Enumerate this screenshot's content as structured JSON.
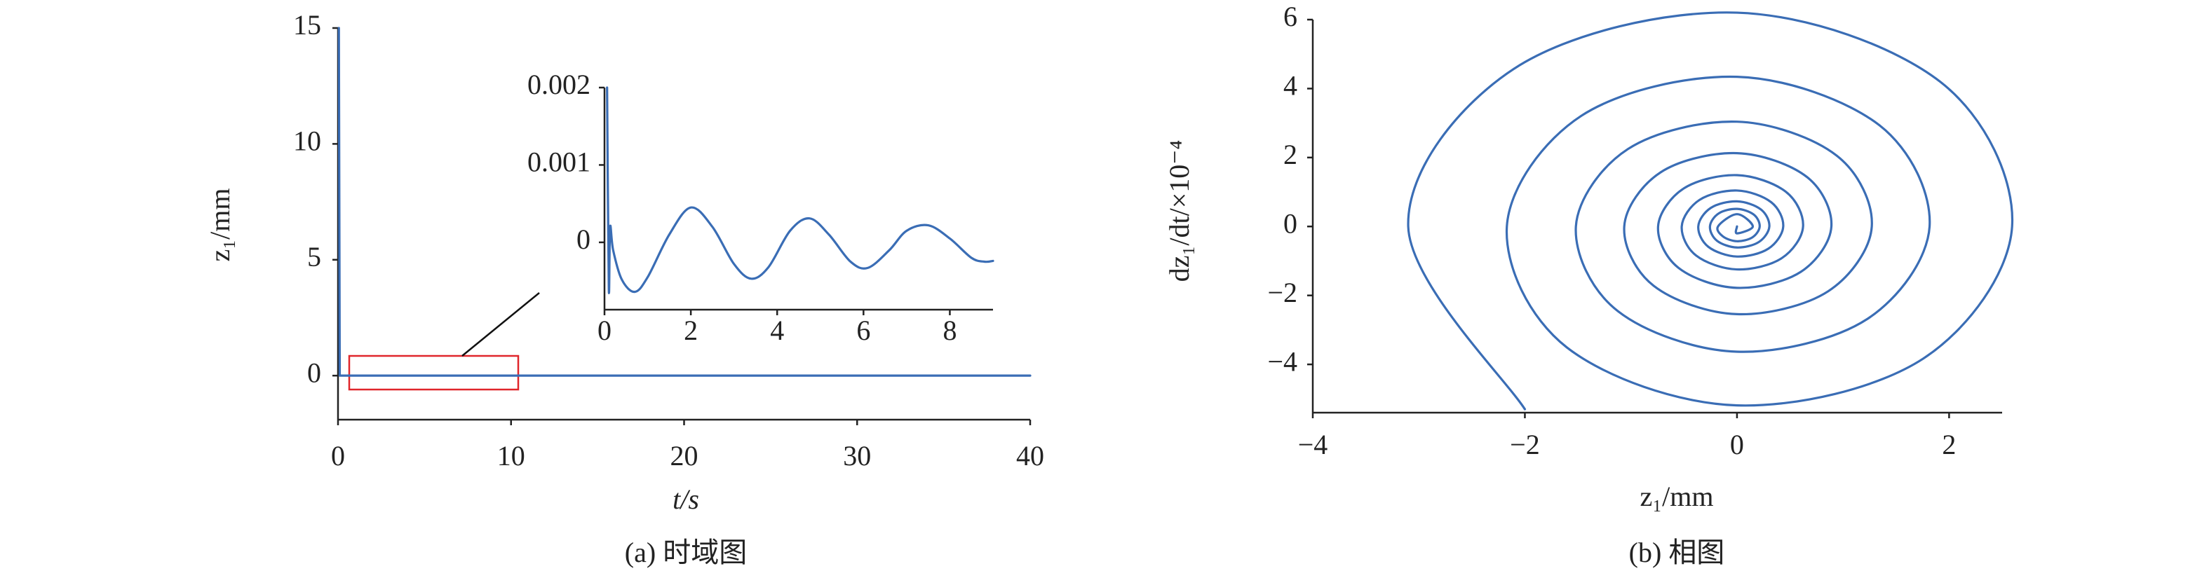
{
  "chart_data": [
    {
      "type": "line",
      "x_label": "t/s",
      "y_label": "z₁/mm",
      "caption": "(a) 时域图",
      "x": [
        0.05,
        0.1,
        0.15,
        40
      ],
      "values": [
        15,
        0.002,
        0,
        0
      ],
      "color": "#3a6db5",
      "xlim": [
        0,
        40
      ],
      "ylim": [
        -1.9,
        15
      ],
      "xticks": [
        0,
        10,
        20,
        30,
        40
      ],
      "yticks": [
        0,
        5,
        10,
        15
      ]
    },
    {
      "type": "line",
      "x": [
        0.06,
        0.1,
        0.13,
        0.2,
        0.4,
        0.7,
        1.0,
        1.5,
        2.0,
        2.5,
        3.0,
        3.4,
        3.8,
        4.3,
        4.75,
        5.2,
        5.7,
        6.1,
        6.6,
        7.0,
        7.5,
        8.0,
        8.5,
        8.8,
        9.0
      ],
      "values": [
        0.002,
        -0.0006,
        0.0002,
        -0.0001,
        -0.00048,
        -0.00064,
        -0.00045,
        0.0001,
        0.00045,
        0.0002,
        -0.00028,
        -0.00047,
        -0.00032,
        0.00015,
        0.00031,
        0.0001,
        -0.00025,
        -0.00033,
        -0.0001,
        0.00015,
        0.00022,
        5e-05,
        -0.0002,
        -0.00025,
        -0.00024
      ],
      "color": "#3a6db5",
      "xlim": [
        0,
        9
      ],
      "ylim": [
        -0.00087,
        0.002
      ],
      "xticks": [
        0,
        2,
        4,
        6,
        8
      ],
      "yticks": [
        0,
        0.001,
        0.002
      ]
    },
    {
      "type": "line",
      "x_label": "z₁/mm",
      "y_label": "dz₁/dt/×10⁻⁴",
      "caption": "(b) 相图",
      "x": [
        -2.0,
        -3.1,
        -2.097,
        0,
        1.918,
        2.594,
        1.754,
        0,
        -1.604,
        -2.17,
        -1.468,
        0,
        1.343,
        1.816,
        1.228,
        0,
        -1.123,
        -1.519,
        -1.028,
        0,
        0.94,
        1.271,
        0.859,
        0,
        -0.786,
        -1.063,
        -0.719,
        0,
        0.658,
        0.89,
        0.602,
        0,
        -0.55,
        -0.744,
        -0.503,
        0,
        0.461,
        0.623,
        0.421,
        0,
        -0.385,
        -0.521,
        -0.353,
        0,
        0.322,
        0.436,
        0.295,
        0,
        -0.27,
        -0.365,
        -0.247,
        0,
        0.226,
        0.305,
        0.206,
        0,
        -0.189,
        -0.255,
        -0.173,
        0,
        0.158,
        0.214,
        0.145,
        0,
        -0.132,
        -0.179,
        0,
        0.149,
        0,
        0
      ],
      "values": [
        -5.3,
        0,
        4.585,
        6.202,
        4.194,
        0,
        -3.836,
        -5.189,
        -3.509,
        0,
        3.21,
        4.341,
        2.936,
        0,
        -2.685,
        -3.632,
        -2.456,
        0,
        2.247,
        3.039,
        2.055,
        0,
        -1.88,
        -2.543,
        -1.719,
        0,
        1.573,
        2.127,
        1.439,
        0,
        -1.316,
        -1.78,
        -1.204,
        0,
        1.101,
        1.489,
        1.007,
        0,
        -0.921,
        -1.246,
        -0.843,
        0,
        0.771,
        1.043,
        0.705,
        0,
        -0.645,
        -0.872,
        -0.59,
        0,
        0.539,
        0.729,
        0.493,
        0,
        -0.451,
        -0.61,
        -0.413,
        0,
        0.378,
        0.511,
        0.346,
        0,
        -0.316,
        -0.428,
        -0.289,
        0,
        0.357,
        0,
        -0.2,
        0
      ],
      "color": "#3a6db5",
      "xlim": [
        -4,
        2.5
      ],
      "ylim": [
        -5.4,
        6
      ],
      "xticks": [
        {
          "value": -4,
          "label": "−4"
        },
        {
          "value": -2,
          "label": "−2"
        },
        0,
        2
      ],
      "yticks": [
        {
          "value": -4,
          "label": "−4"
        },
        {
          "value": -2,
          "label": "−2"
        },
        0,
        2,
        4,
        6
      ]
    }
  ]
}
